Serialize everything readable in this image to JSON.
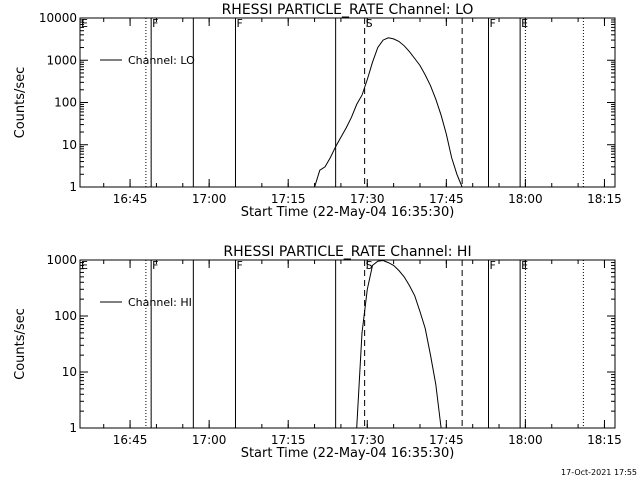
{
  "chart_data": [
    {
      "type": "line",
      "title": "RHESSI PARTICLE_RATE Channel: LO",
      "xlabel": "Start Time (22-May-04 16:35:30)",
      "ylabel": "Counts/sec",
      "y_scale": "log",
      "ylim": [
        1,
        10000
      ],
      "xlim": [
        "16:35:30",
        "18:17:00"
      ],
      "x_tick_labels": [
        "16:45",
        "17:00",
        "17:15",
        "17:30",
        "17:45",
        "18:00",
        "18:15"
      ],
      "y_tick_labels": [
        "1",
        "10",
        "100",
        "1000",
        "10000"
      ],
      "legend": {
        "entries": [
          "Channel: LO"
        ],
        "placement": "top-left"
      },
      "grid": false,
      "markers": [
        {
          "label": "E",
          "time": "16:35:30",
          "style": "solid"
        },
        {
          "label": "",
          "time": "16:48:00",
          "style": "dotted"
        },
        {
          "label": "F",
          "time": "16:49:00",
          "style": "solid"
        },
        {
          "label": "",
          "time": "16:57:00",
          "style": "solid"
        },
        {
          "label": "F",
          "time": "17:05:00",
          "style": "solid"
        },
        {
          "label": "",
          "time": "17:24:00",
          "style": "solid"
        },
        {
          "label": "S",
          "time": "17:29:30",
          "style": "dashed"
        },
        {
          "label": "",
          "time": "17:48:00",
          "style": "dashed"
        },
        {
          "label": "F",
          "time": "17:53:00",
          "style": "solid"
        },
        {
          "label": "E",
          "time": "17:59:00",
          "style": "solid"
        },
        {
          "label": "",
          "time": "18:00:00",
          "style": "dotted"
        },
        {
          "label": "",
          "time": "18:11:00",
          "style": "dotted"
        }
      ],
      "series": [
        {
          "name": "Channel: LO",
          "x": [
            "17:20:00",
            "17:21:00",
            "17:22:00",
            "17:23:00",
            "17:24:00",
            "17:25:00",
            "17:26:00",
            "17:27:00",
            "17:28:00",
            "17:29:00",
            "17:30:00",
            "17:31:00",
            "17:32:00",
            "17:33:00",
            "17:34:00",
            "17:35:00",
            "17:36:00",
            "17:37:00",
            "17:38:00",
            "17:39:00",
            "17:40:00",
            "17:41:00",
            "17:42:00",
            "17:43:00",
            "17:44:00",
            "17:45:00",
            "17:46:00",
            "17:47:00",
            "17:48:00"
          ],
          "y": [
            1,
            2.5,
            3,
            5,
            9,
            15,
            25,
            45,
            90,
            150,
            350,
            900,
            2000,
            3000,
            3400,
            3200,
            2800,
            2200,
            1600,
            1100,
            750,
            450,
            250,
            120,
            50,
            18,
            5,
            2,
            1
          ]
        }
      ]
    },
    {
      "type": "line",
      "title": "RHESSI PARTICLE_RATE Channel: HI",
      "xlabel": "Start Time (22-May-04 16:35:30)",
      "ylabel": "Counts/sec",
      "y_scale": "log",
      "ylim": [
        1,
        1000
      ],
      "xlim": [
        "16:35:30",
        "18:17:00"
      ],
      "x_tick_labels": [
        "16:45",
        "17:00",
        "17:15",
        "17:30",
        "17:45",
        "18:00",
        "18:15"
      ],
      "y_tick_labels": [
        "1",
        "10",
        "100",
        "1000"
      ],
      "legend": {
        "entries": [
          "Channel: HI"
        ],
        "placement": "top-left"
      },
      "grid": false,
      "markers": [
        {
          "label": "E",
          "time": "16:35:30",
          "style": "solid"
        },
        {
          "label": "",
          "time": "16:48:00",
          "style": "dotted"
        },
        {
          "label": "F",
          "time": "16:49:00",
          "style": "solid"
        },
        {
          "label": "",
          "time": "16:57:00",
          "style": "solid"
        },
        {
          "label": "F",
          "time": "17:05:00",
          "style": "solid"
        },
        {
          "label": "",
          "time": "17:24:00",
          "style": "solid"
        },
        {
          "label": "S",
          "time": "17:29:30",
          "style": "dashed"
        },
        {
          "label": "",
          "time": "17:48:00",
          "style": "dashed"
        },
        {
          "label": "F",
          "time": "17:53:00",
          "style": "solid"
        },
        {
          "label": "E",
          "time": "17:59:00",
          "style": "solid"
        },
        {
          "label": "",
          "time": "18:00:00",
          "style": "dotted"
        },
        {
          "label": "",
          "time": "18:11:00",
          "style": "dotted"
        }
      ],
      "series": [
        {
          "name": "Channel: HI",
          "x": [
            "17:28:00",
            "17:29:00",
            "17:30:00",
            "17:31:00",
            "17:32:00",
            "17:33:00",
            "17:34:00",
            "17:35:00",
            "17:36:00",
            "17:37:00",
            "17:38:00",
            "17:39:00",
            "17:40:00",
            "17:41:00",
            "17:42:00",
            "17:43:00",
            "17:44:00"
          ],
          "y": [
            1,
            50,
            300,
            800,
            950,
            980,
            900,
            800,
            650,
            500,
            350,
            230,
            120,
            60,
            20,
            6,
            1
          ]
        }
      ]
    }
  ],
  "footer": {
    "timestamp": "17-Oct-2021 17:55"
  }
}
